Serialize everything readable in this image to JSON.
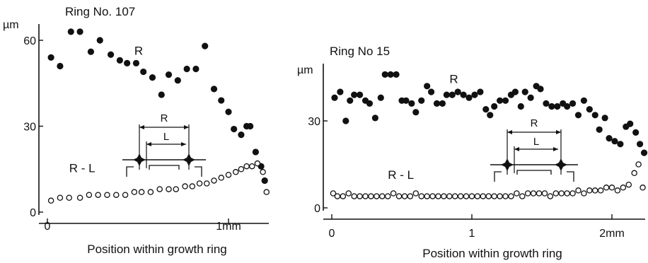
{
  "chart_data": [
    {
      "type": "scatter",
      "title": "Ring No. 107",
      "xlabel": "Position within growth ring",
      "ylabel": "µm",
      "xlim": [
        0,
        1.2
      ],
      "ylim": [
        0,
        64
      ],
      "xticks": [
        {
          "v": 0,
          "label": "0"
        },
        {
          "v": 1,
          "label": "1mm"
        }
      ],
      "yticks": [
        {
          "v": 0,
          "label": "0"
        },
        {
          "v": 30,
          "label": "30"
        },
        {
          "v": 60,
          "label": "60"
        }
      ],
      "grid": false,
      "inset": {
        "outer_label": "R",
        "inner_label": "L"
      },
      "series": [
        {
          "name": "R",
          "marker": "filled-circle",
          "label_at": [
            0.48,
            55
          ],
          "x": [
            0.02,
            0.07,
            0.13,
            0.18,
            0.24,
            0.29,
            0.35,
            0.4,
            0.44,
            0.49,
            0.53,
            0.58,
            0.63,
            0.67,
            0.72,
            0.77,
            0.82,
            0.87,
            0.92,
            0.96,
            1.0,
            1.03,
            1.07,
            1.1,
            1.12,
            1.15,
            1.18,
            1.2
          ],
          "y": [
            54,
            51,
            63,
            63,
            56,
            60,
            55,
            53,
            52,
            52,
            49,
            47,
            41,
            48,
            46,
            50,
            50,
            58,
            43,
            39,
            35,
            29,
            27,
            30,
            30,
            21,
            16,
            11
          ]
        },
        {
          "name": "R - L",
          "marker": "open-circle",
          "label_at": [
            0.12,
            14
          ],
          "x": [
            0.02,
            0.07,
            0.12,
            0.18,
            0.23,
            0.28,
            0.33,
            0.38,
            0.43,
            0.48,
            0.52,
            0.57,
            0.62,
            0.67,
            0.71,
            0.76,
            0.8,
            0.84,
            0.88,
            0.92,
            0.96,
            1.0,
            1.04,
            1.07,
            1.1,
            1.13,
            1.16,
            1.19,
            1.21
          ],
          "y": [
            4,
            5,
            5,
            5,
            6,
            6,
            6,
            6,
            6,
            7,
            7,
            7,
            8,
            8,
            8,
            9,
            9,
            10,
            10,
            11,
            12,
            13,
            14,
            15,
            16,
            16,
            17,
            14,
            7
          ]
        }
      ]
    },
    {
      "type": "scatter",
      "title": "Ring No 15",
      "xlabel": "Position within growth ring",
      "ylabel": "µm",
      "xlim": [
        0,
        2.25
      ],
      "ylim": [
        0,
        48
      ],
      "xticks": [
        {
          "v": 0,
          "label": "0"
        },
        {
          "v": 1,
          "label": "1"
        },
        {
          "v": 2,
          "label": "2mm"
        }
      ],
      "yticks": [
        {
          "v": 0,
          "label": "0"
        },
        {
          "v": 30,
          "label": "30"
        }
      ],
      "grid": false,
      "inset": {
        "outer_label": "R",
        "inner_label": "L"
      },
      "series": [
        {
          "name": "R",
          "marker": "filled-circle",
          "label_at": [
            0.84,
            43
          ],
          "x": [
            0.02,
            0.06,
            0.1,
            0.13,
            0.16,
            0.2,
            0.24,
            0.27,
            0.31,
            0.35,
            0.38,
            0.42,
            0.46,
            0.5,
            0.53,
            0.57,
            0.6,
            0.64,
            0.68,
            0.71,
            0.75,
            0.79,
            0.82,
            0.86,
            0.9,
            0.94,
            0.98,
            1.02,
            1.06,
            1.1,
            1.13,
            1.16,
            1.2,
            1.24,
            1.28,
            1.31,
            1.35,
            1.38,
            1.42,
            1.46,
            1.49,
            1.53,
            1.57,
            1.61,
            1.65,
            1.68,
            1.72,
            1.76,
            1.8,
            1.84,
            1.88,
            1.91,
            1.95,
            1.98,
            2.02,
            2.06,
            2.1,
            2.13,
            2.17,
            2.2,
            2.23
          ],
          "y": [
            38,
            40,
            30,
            37,
            39,
            39,
            37,
            36,
            31,
            38,
            46,
            46,
            46,
            37,
            37,
            36,
            33,
            37,
            42,
            40,
            36,
            36,
            39,
            39,
            40,
            39,
            38,
            39,
            40,
            34,
            32,
            35,
            37,
            37,
            39,
            40,
            35,
            40,
            38,
            42,
            41,
            36,
            35,
            35,
            36,
            35,
            36,
            32,
            37,
            34,
            32,
            27,
            31,
            24,
            23,
            22,
            28,
            29,
            26,
            22,
            19
          ]
        },
        {
          "name": "R - L",
          "marker": "open-circle",
          "label_at": [
            0.4,
            10
          ],
          "x": [
            0.01,
            0.04,
            0.08,
            0.12,
            0.16,
            0.2,
            0.24,
            0.28,
            0.32,
            0.36,
            0.4,
            0.44,
            0.48,
            0.52,
            0.56,
            0.6,
            0.64,
            0.68,
            0.72,
            0.76,
            0.8,
            0.84,
            0.88,
            0.92,
            0.96,
            1.0,
            1.04,
            1.08,
            1.12,
            1.16,
            1.2,
            1.24,
            1.28,
            1.32,
            1.36,
            1.4,
            1.44,
            1.48,
            1.52,
            1.56,
            1.6,
            1.64,
            1.68,
            1.72,
            1.76,
            1.8,
            1.84,
            1.88,
            1.92,
            1.96,
            2.0,
            2.04,
            2.08,
            2.12,
            2.16,
            2.19,
            2.22
          ],
          "y": [
            5,
            4,
            4,
            5,
            4,
            4,
            4,
            4,
            4,
            4,
            4,
            5,
            4,
            4,
            4,
            5,
            4,
            4,
            4,
            4,
            4,
            4,
            4,
            4,
            4,
            4,
            4,
            4,
            4,
            4,
            4,
            4,
            4,
            5,
            4,
            5,
            5,
            5,
            5,
            4,
            5,
            5,
            5,
            5,
            6,
            5,
            6,
            6,
            6,
            7,
            7,
            6,
            7,
            8,
            12,
            15,
            7
          ]
        }
      ]
    }
  ]
}
